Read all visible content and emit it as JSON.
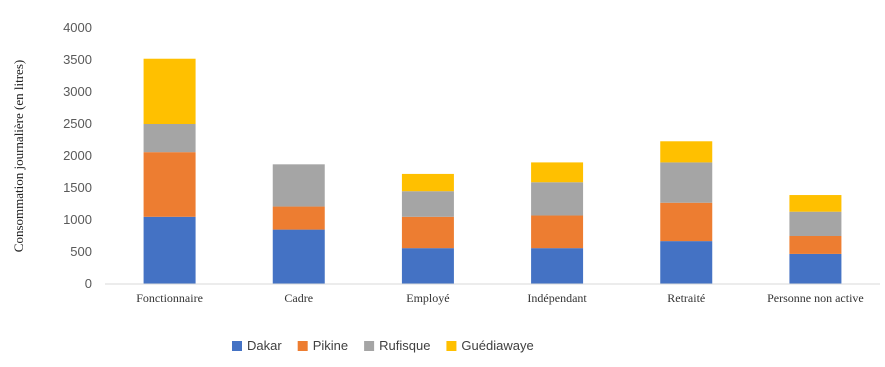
{
  "chart_data": {
    "type": "bar",
    "stacked": true,
    "title": "",
    "xlabel": "",
    "ylabel": "Consommation journalière (en litres)",
    "ylim": [
      0,
      4000
    ],
    "yticks": [
      0,
      500,
      1000,
      1500,
      2000,
      2500,
      3000,
      3500,
      4000
    ],
    "grid": false,
    "legend_position": "bottom",
    "categories": [
      "Fonctionnaire",
      "Cadre",
      "Employé",
      "Indépendant",
      "Retraité",
      "Personne non active"
    ],
    "series": [
      {
        "name": "Dakar",
        "color": "#4472C4",
        "values": [
          1050,
          850,
          560,
          560,
          670,
          470
        ]
      },
      {
        "name": "Pikine",
        "color": "#ED7D31",
        "values": [
          1010,
          360,
          490,
          510,
          600,
          280
        ]
      },
      {
        "name": "Rufisque",
        "color": "#A5A5A5",
        "values": [
          440,
          660,
          400,
          520,
          630,
          380
        ]
      },
      {
        "name": "Guédiawaye",
        "color": "#FFC000",
        "values": [
          1020,
          0,
          270,
          310,
          330,
          260
        ]
      }
    ]
  }
}
